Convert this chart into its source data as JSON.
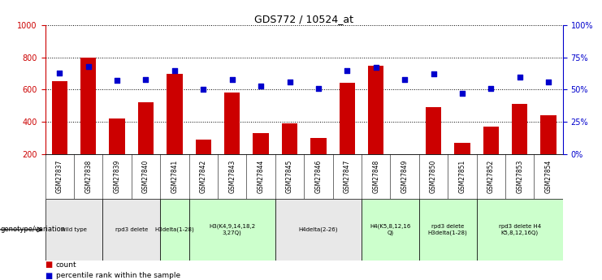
{
  "title": "GDS772 / 10524_at",
  "samples": [
    "GSM27837",
    "GSM27838",
    "GSM27839",
    "GSM27840",
    "GSM27841",
    "GSM27842",
    "GSM27843",
    "GSM27844",
    "GSM27845",
    "GSM27846",
    "GSM27847",
    "GSM27848",
    "GSM27849",
    "GSM27850",
    "GSM27851",
    "GSM27852",
    "GSM27853",
    "GSM27854"
  ],
  "counts": [
    650,
    800,
    420,
    520,
    700,
    290,
    580,
    330,
    390,
    300,
    640,
    750,
    200,
    490,
    270,
    370,
    510,
    440
  ],
  "percentiles": [
    63,
    68,
    57,
    58,
    65,
    50,
    58,
    53,
    56,
    51,
    65,
    67,
    58,
    62,
    47,
    51,
    60,
    56
  ],
  "ylim_left": [
    200,
    1000
  ],
  "ylim_right": [
    0,
    100
  ],
  "yticks_left": [
    200,
    400,
    600,
    800,
    1000
  ],
  "yticks_right": [
    0,
    25,
    50,
    75,
    100
  ],
  "bar_color": "#cc0000",
  "dot_color": "#0000cc",
  "groups": [
    {
      "label": "wild type",
      "start": 0,
      "end": 2,
      "color": "#e8e8e8"
    },
    {
      "label": "rpd3 delete",
      "start": 2,
      "end": 4,
      "color": "#e8e8e8"
    },
    {
      "label": "H3delta(1-28)",
      "start": 4,
      "end": 5,
      "color": "#ccffcc"
    },
    {
      "label": "H3(K4,9,14,18,2\n3,27Q)",
      "start": 5,
      "end": 8,
      "color": "#ccffcc"
    },
    {
      "label": "H4delta(2-26)",
      "start": 8,
      "end": 11,
      "color": "#e8e8e8"
    },
    {
      "label": "H4(K5,8,12,16\nQ)",
      "start": 11,
      "end": 13,
      "color": "#ccffcc"
    },
    {
      "label": "rpd3 delete\nH3delta(1-28)",
      "start": 13,
      "end": 15,
      "color": "#ccffcc"
    },
    {
      "label": "rpd3 delete H4\nK5,8,12,16Q)",
      "start": 15,
      "end": 18,
      "color": "#ccffcc"
    }
  ],
  "left_axis_color": "#cc0000",
  "right_axis_color": "#0000cc",
  "background_color": "#ffffff",
  "sample_row_color": "#d8d8d8",
  "bar_bottom": 200
}
